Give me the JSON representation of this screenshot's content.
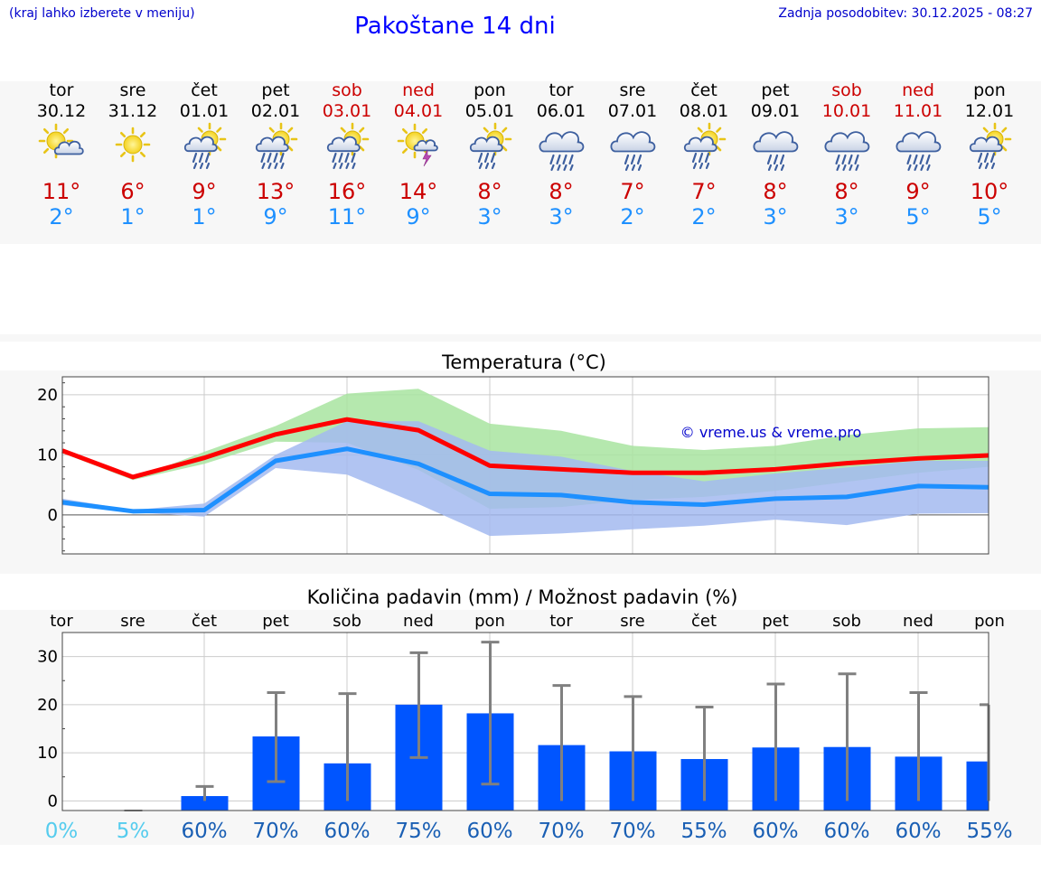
{
  "header": {
    "hint": "(kraj lahko izberete v meniju)",
    "title": "Pakoštane 14 dni",
    "updated": "Zadnja posodobitev: 30.12.2025 - 08:27"
  },
  "forecast": [
    {
      "day": "tor",
      "date": "30.12",
      "weekend": false,
      "icon": "sun-cloud-icon",
      "max": "11°",
      "min": "2°"
    },
    {
      "day": "sre",
      "date": "31.12",
      "weekend": false,
      "icon": "sun-icon",
      "max": "6°",
      "min": "1°"
    },
    {
      "day": "čet",
      "date": "01.01",
      "weekend": false,
      "icon": "sun-cloud-rain-icon",
      "max": "9°",
      "min": "1°"
    },
    {
      "day": "pet",
      "date": "02.01",
      "weekend": false,
      "icon": "sun-cloud-heavy-rain-icon",
      "max": "13°",
      "min": "9°"
    },
    {
      "day": "sob",
      "date": "03.01",
      "weekend": true,
      "icon": "sun-cloud-heavy-rain-icon",
      "max": "16°",
      "min": "11°"
    },
    {
      "day": "ned",
      "date": "04.01",
      "weekend": true,
      "icon": "sun-thunder-icon",
      "max": "14°",
      "min": "9°"
    },
    {
      "day": "pon",
      "date": "05.01",
      "weekend": false,
      "icon": "sun-cloud-rain-icon",
      "max": "8°",
      "min": "3°"
    },
    {
      "day": "tor",
      "date": "06.01",
      "weekend": false,
      "icon": "cloud-heavy-rain-icon",
      "max": "8°",
      "min": "3°"
    },
    {
      "day": "sre",
      "date": "07.01",
      "weekend": false,
      "icon": "cloud-rain-icon",
      "max": "7°",
      "min": "2°"
    },
    {
      "day": "čet",
      "date": "08.01",
      "weekend": false,
      "icon": "sun-cloud-rain-icon",
      "max": "7°",
      "min": "2°"
    },
    {
      "day": "pet",
      "date": "09.01",
      "weekend": false,
      "icon": "cloud-rain-icon",
      "max": "8°",
      "min": "3°"
    },
    {
      "day": "sob",
      "date": "10.01",
      "weekend": true,
      "icon": "cloud-heavy-rain-icon",
      "max": "8°",
      "min": "3°"
    },
    {
      "day": "ned",
      "date": "11.01",
      "weekend": true,
      "icon": "cloud-heavy-rain-icon",
      "max": "9°",
      "min": "5°"
    },
    {
      "day": "pon",
      "date": "12.01",
      "weekend": false,
      "icon": "sun-cloud-rain-icon",
      "max": "10°",
      "min": "5°"
    }
  ],
  "colors": {
    "title": "#0000ff",
    "weekend": "#cc0000",
    "weekday": "#000000",
    "max_temp": "#cc0000",
    "min_temp": "#1e90ff",
    "max_line": "#ff0000",
    "min_line": "#1e90ff",
    "max_band": "#a8e4a0",
    "min_band": "#a3baf0",
    "precip_bar": "#0055ff",
    "whisker": "#808080",
    "chance_low": "#55ccee",
    "chance_high": "#1a5fb4"
  },
  "chart_data": [
    {
      "type": "line",
      "title": "Temperatura (°C)",
      "xlabel": "",
      "ylabel": "",
      "x_categories": [
        "30.12",
        "31.12",
        "01.01",
        "02.01",
        "03.01",
        "04.01",
        "05.01",
        "06.01",
        "07.01",
        "08.01",
        "09.01",
        "10.01",
        "11.01",
        "12.01"
      ],
      "ylim": [
        -6.5,
        23
      ],
      "yticks": [
        0,
        10,
        20
      ],
      "grid": true,
      "watermark": "© vreme.us & vreme.pro",
      "series": [
        {
          "name": "max",
          "values": [
            10.7,
            6.3,
            9.5,
            13.4,
            15.9,
            14.1,
            8.2,
            7.6,
            7.0,
            7.0,
            7.6,
            8.6,
            9.4,
            9.9
          ]
        },
        {
          "name": "max_upper",
          "values": [
            10.9,
            6.0,
            10.5,
            14.8,
            20.2,
            21.0,
            15.2,
            14.0,
            11.5,
            10.8,
            11.5,
            13.3,
            14.4,
            14.6
          ]
        },
        {
          "name": "max_lower",
          "values": [
            10.3,
            5.8,
            8.5,
            12.2,
            12.0,
            7.5,
            1.0,
            1.3,
            2.5,
            3.0,
            4.0,
            5.5,
            7.0,
            8.0
          ]
        },
        {
          "name": "min",
          "values": [
            2.1,
            0.6,
            0.8,
            9.0,
            11.0,
            8.5,
            3.5,
            3.3,
            2.1,
            1.7,
            2.7,
            3.0,
            4.8,
            4.6
          ]
        },
        {
          "name": "min_upper",
          "values": [
            2.7,
            0.8,
            1.9,
            10.0,
            15.6,
            15.6,
            10.7,
            9.7,
            7.3,
            5.6,
            6.9,
            7.9,
            9.0,
            9.0
          ]
        },
        {
          "name": "min_lower",
          "values": [
            1.6,
            0.4,
            -0.3,
            7.8,
            6.7,
            1.8,
            -3.5,
            -3.1,
            -2.4,
            -1.8,
            -0.8,
            -1.7,
            0.2,
            0.3
          ]
        }
      ]
    },
    {
      "type": "bar",
      "title": "Količina padavin (mm) / Možnost padavin (%)",
      "xlabel": "",
      "ylabel": "",
      "categories": [
        "tor",
        "sre",
        "čet",
        "pet",
        "sob",
        "ned",
        "pon",
        "tor",
        "sre",
        "čet",
        "pet",
        "sob",
        "ned",
        "pon"
      ],
      "ylim": [
        -2,
        35
      ],
      "yticks": [
        0,
        10,
        20,
        30
      ],
      "grid": true,
      "series": [
        {
          "name": "precipitation_mm",
          "values": [
            0,
            0,
            1,
            13.4,
            7.8,
            20,
            18.2,
            11.6,
            10.3,
            8.7,
            11.1,
            11.2,
            9.2,
            8.2
          ]
        },
        {
          "name": "precipitation_max_mm",
          "values": [
            0,
            0,
            3,
            22.5,
            22.3,
            30.8,
            33,
            24,
            21.7,
            19.5,
            24.3,
            26.4,
            22.5,
            20
          ]
        },
        {
          "name": "precipitation_min_mm",
          "values": [
            0,
            0,
            0,
            4,
            0,
            9,
            3.5,
            0,
            0,
            0,
            0,
            0,
            0,
            0
          ]
        }
      ],
      "chance": [
        "0%",
        "5%",
        "60%",
        "70%",
        "60%",
        "75%",
        "60%",
        "70%",
        "70%",
        "55%",
        "60%",
        "60%",
        "60%",
        "55%"
      ]
    }
  ]
}
